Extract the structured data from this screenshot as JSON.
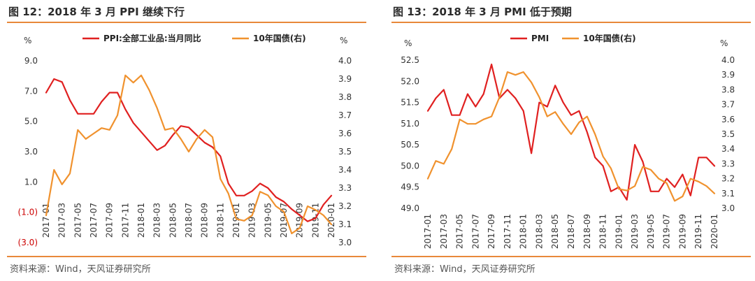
{
  "left": {
    "title": "图 12：2018 年 3 月 PPI 继续下行",
    "source": "资料来源：Wind，天风证券研究所",
    "chart_data": {
      "type": "line",
      "x": [
        "2017-01",
        "2017-02",
        "2017-03",
        "2017-04",
        "2017-05",
        "2017-06",
        "2017-07",
        "2017-08",
        "2017-09",
        "2017-10",
        "2017-11",
        "2017-12",
        "2018-01",
        "2018-02",
        "2018-03",
        "2018-04",
        "2018-05",
        "2018-06",
        "2018-07",
        "2018-08",
        "2018-09",
        "2018-10",
        "2018-11",
        "2018-12",
        "2019-01",
        "2019-02",
        "2019-03",
        "2019-04",
        "2019-05",
        "2019-06",
        "2019-07",
        "2019-08",
        "2019-09",
        "2019-10",
        "2019-11",
        "2019-12",
        "2020-01"
      ],
      "xtick_labels": [
        "2017-01",
        "2017-03",
        "2017-05",
        "2017-07",
        "2017-09",
        "2017-11",
        "2018-01",
        "2018-03",
        "2018-05",
        "2018-07",
        "2018-09",
        "2018-11",
        "2019-01",
        "2019-03",
        "2019-05",
        "2019-07",
        "2019-09",
        "2019-11",
        "2020-01"
      ],
      "y_left_label": "%",
      "y_right_label": "%",
      "y_left_ticks": [
        "9.0",
        "7.0",
        "5.0",
        "3.0",
        "1.0",
        "(1.0)",
        "(3.0)"
      ],
      "y_right_ticks": [
        "4.0",
        "3.9",
        "3.8",
        "3.7",
        "3.6",
        "3.5",
        "3.4",
        "3.3",
        "3.2",
        "3.1",
        "3.0"
      ],
      "ylim_left": [
        -3,
        9
      ],
      "ylim_right": [
        3.0,
        4.0
      ],
      "legend_position": "top",
      "series": [
        {
          "name": "PPI:全部工业品:当月同比",
          "axis": "left",
          "color": "#e02020",
          "values": [
            6.9,
            7.8,
            7.6,
            6.4,
            5.5,
            5.5,
            5.5,
            6.3,
            6.9,
            6.9,
            5.8,
            4.9,
            4.3,
            3.7,
            3.1,
            3.4,
            4.1,
            4.7,
            4.6,
            4.1,
            3.6,
            3.3,
            2.7,
            0.9,
            0.1,
            0.1,
            0.4,
            0.9,
            0.6,
            0.0,
            -0.3,
            -0.8,
            -1.2,
            -1.6,
            -1.4,
            -0.5,
            0.1
          ]
        },
        {
          "name": "10年国债(右)",
          "axis": "right",
          "color": "#f0922e",
          "values": [
            3.15,
            3.4,
            3.32,
            3.38,
            3.62,
            3.57,
            3.6,
            3.63,
            3.62,
            3.7,
            3.92,
            3.88,
            3.92,
            3.84,
            3.74,
            3.62,
            3.63,
            3.57,
            3.5,
            3.57,
            3.62,
            3.58,
            3.35,
            3.27,
            3.13,
            3.12,
            3.15,
            3.28,
            3.26,
            3.2,
            3.17,
            3.05,
            3.08,
            3.2,
            3.18,
            3.15,
            3.1
          ]
        }
      ]
    }
  },
  "right": {
    "title": "图 13：2018 年 3 月 PMI 低于预期",
    "source": "资料来源：Wind，天风证券研究所",
    "chart_data": {
      "type": "line",
      "x": [
        "2017-01",
        "2017-02",
        "2017-03",
        "2017-04",
        "2017-05",
        "2017-06",
        "2017-07",
        "2017-08",
        "2017-09",
        "2017-10",
        "2017-11",
        "2017-12",
        "2018-01",
        "2018-02",
        "2018-03",
        "2018-04",
        "2018-05",
        "2018-06",
        "2018-07",
        "2018-08",
        "2018-09",
        "2018-10",
        "2018-11",
        "2018-12",
        "2019-01",
        "2019-02",
        "2019-03",
        "2019-04",
        "2019-05",
        "2019-06",
        "2019-07",
        "2019-08",
        "2019-09",
        "2019-10",
        "2019-11",
        "2019-12",
        "2020-01"
      ],
      "xtick_labels": [
        "2017-01",
        "2017-03",
        "2017-05",
        "2017-07",
        "2017-09",
        "2017-11",
        "2018-01",
        "2018-03",
        "2018-05",
        "2018-07",
        "2018-09",
        "2018-11",
        "2019-01",
        "2019-03",
        "2019-05",
        "2019-07",
        "2019-09",
        "2019-11",
        "2020-01"
      ],
      "y_left_label": "%",
      "y_right_label": "%",
      "y_left_ticks": [
        "52.5",
        "52.0",
        "51.5",
        "51.0",
        "50.5",
        "50.0",
        "49.5",
        "49.0"
      ],
      "y_right_ticks": [
        "4.0",
        "3.9",
        "3.8",
        "3.7",
        "3.6",
        "3.5",
        "3.4",
        "3.3",
        "3.2",
        "3.1",
        "3.0"
      ],
      "ylim_left": [
        49.0,
        52.5
      ],
      "ylim_right": [
        3.0,
        4.0
      ],
      "legend_position": "top",
      "series": [
        {
          "name": "PMI",
          "axis": "left",
          "color": "#e02020",
          "values": [
            51.3,
            51.6,
            51.8,
            51.2,
            51.2,
            51.7,
            51.4,
            51.7,
            52.4,
            51.6,
            51.8,
            51.6,
            51.3,
            50.3,
            51.5,
            51.4,
            51.9,
            51.5,
            51.2,
            51.3,
            50.8,
            50.2,
            50.0,
            49.4,
            49.5,
            49.2,
            50.5,
            50.1,
            49.4,
            49.4,
            49.7,
            49.5,
            49.8,
            49.3,
            50.2,
            50.2,
            50.0
          ]
        },
        {
          "name": "10年国债(右)",
          "axis": "right",
          "color": "#f0922e",
          "values": [
            3.2,
            3.32,
            3.3,
            3.4,
            3.6,
            3.57,
            3.57,
            3.6,
            3.62,
            3.75,
            3.92,
            3.9,
            3.92,
            3.85,
            3.75,
            3.62,
            3.65,
            3.57,
            3.5,
            3.58,
            3.62,
            3.5,
            3.35,
            3.27,
            3.13,
            3.12,
            3.15,
            3.28,
            3.26,
            3.2,
            3.17,
            3.05,
            3.08,
            3.2,
            3.18,
            3.15,
            3.1
          ]
        }
      ]
    }
  }
}
